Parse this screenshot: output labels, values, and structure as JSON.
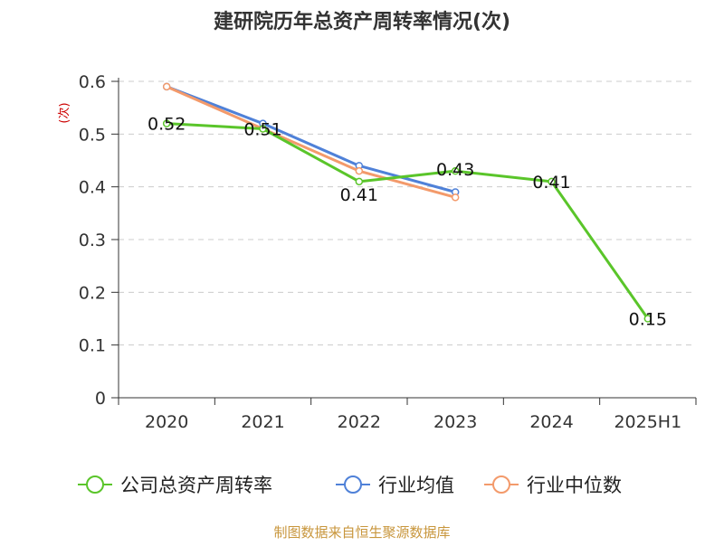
{
  "chart_data": {
    "type": "line",
    "title": "建研院历年总资产周转率情况(次)",
    "ylabel": "(次)",
    "xlabel": "",
    "categories": [
      "2020",
      "2021",
      "2022",
      "2023",
      "2024",
      "2025H1"
    ],
    "ylim": [
      0,
      0.6
    ],
    "yticks": [
      "0",
      "0.1",
      "0.2",
      "0.3",
      "0.4",
      "0.5",
      "0.6"
    ],
    "grid": true,
    "legend_position": "bottom",
    "series": [
      {
        "name": "公司总资产周转率",
        "color": "#5ac52a",
        "values": [
          0.52,
          0.51,
          0.41,
          0.43,
          0.41,
          0.15
        ],
        "labels": [
          "0.52",
          "0.51",
          "0.41",
          "0.43",
          "0.41",
          "0.15"
        ]
      },
      {
        "name": "行业均值",
        "color": "#4f81d8",
        "values": [
          0.59,
          0.52,
          0.44,
          0.39,
          null,
          null
        ]
      },
      {
        "name": "行业中位数",
        "color": "#f39a6b",
        "values": [
          0.59,
          0.51,
          0.43,
          0.38,
          null,
          null
        ]
      }
    ]
  },
  "footer": {
    "source": "制图数据来自恒生聚源数据库",
    "source_color": "#c8963c"
  }
}
